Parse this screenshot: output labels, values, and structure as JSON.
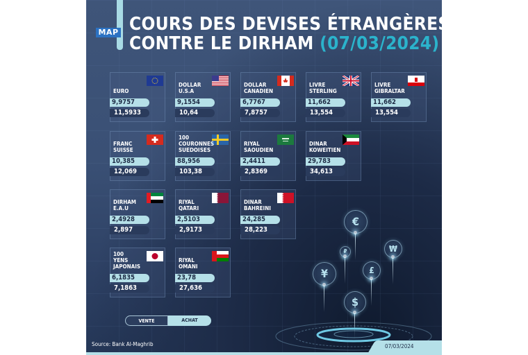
{
  "header": {
    "logo": "MAP",
    "title_line1": "COURS DES DEVISES ÉTRANGÈRES",
    "title_line2": "CONTRE LE DIRHAM",
    "title_date": "(07/03/2024)"
  },
  "colors": {
    "background": "#3d5378",
    "light_bar": "#b5e0e8",
    "dark_bar": "#2a3b5c",
    "date_accent": "#2bb3cc"
  },
  "currencies": [
    {
      "name": "EURO",
      "flag": "eu-flag",
      "v1": "9,9757",
      "v2": "11,5933"
    },
    {
      "name": "DOLLAR U.S.A",
      "flag": "us-flag",
      "v1": "9,1554",
      "v2": "10,64"
    },
    {
      "name": "DOLLAR CANADIEN",
      "flag": "canada-flag",
      "v1": "6,7767",
      "v2": "7,8757"
    },
    {
      "name": "LIVRE STERLING",
      "flag": "uk-flag",
      "v1": "11,662",
      "v2": "13,554"
    },
    {
      "name": "LIVRE GIBRALTAR",
      "flag": "gibraltar-flag",
      "v1": "11,662",
      "v2": "13,554"
    },
    {
      "name": "FRANC SUISSE",
      "flag": "swiss-flag",
      "v1": "10,385",
      "v2": "12,069"
    },
    {
      "name": "100 COURONNES SUEDOISES",
      "flag": "sweden-flag",
      "v1": "88,956",
      "v2": "103,38"
    },
    {
      "name": "RIYAL SAOUDIEN",
      "flag": "saudi-flag",
      "v1": "2,4411",
      "v2": "2,8369"
    },
    {
      "name": "DINAR KOWEITIEN",
      "flag": "kuwait-flag",
      "v1": "29,783",
      "v2": "34,613"
    },
    {
      "name": "DIRHAM E.A.U",
      "flag": "uae-flag",
      "v1": "2,4928",
      "v2": "2,897"
    },
    {
      "name": "RIYAL QATARI",
      "flag": "qatar-flag",
      "v1": "2,5103",
      "v2": "2,9173"
    },
    {
      "name": "DINAR BAHREINI",
      "flag": "bahrain-flag",
      "v1": "24,285",
      "v2": "28,223"
    },
    {
      "name": "100 YENS JAPONAIS",
      "flag": "japan-flag",
      "v1": "6,1835",
      "v2": "7,1863"
    },
    {
      "name": "RIYAL OMANI",
      "flag": "oman-flag",
      "v1": "23,78",
      "v2": "27,636"
    }
  ],
  "legend": {
    "vente": "VENTE",
    "achat": "ACHAT"
  },
  "footer": {
    "source": "Source: Bank Al-Maghrib",
    "date": "07/03/2024"
  },
  "symbols": {
    "euro": "€",
    "ruble": "₽",
    "won": "₩",
    "yen": "¥",
    "pound": "£",
    "dollar": "$"
  }
}
